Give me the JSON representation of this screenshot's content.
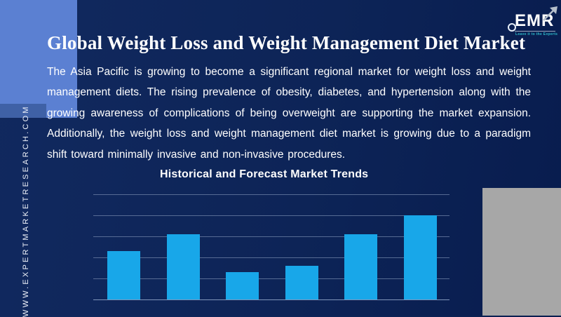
{
  "brand": {
    "logo_text": "EMR",
    "logo_tagline": "Leave it to the Experts",
    "website_vertical": "WWW.EXPERTMARKETRESEARCH.COM"
  },
  "header": {
    "title": "Global Weight Loss and Weight Management Diet Market",
    "paragraph": "The Asia Pacific is growing to become a significant regional market for weight loss and weight management diets. The rising prevalence of obesity, diabetes, and hypertension along with the growing awareness of complications of being overweight are supporting the market expansion. Additionally, the weight loss and weight management diet market is growing due to a paradigm shift toward minimally invasive and non-invasive procedures."
  },
  "chart_data": {
    "type": "bar",
    "title": "Historical and Forecast Market Trends",
    "categories": [
      "",
      "",
      "",
      "",
      "",
      ""
    ],
    "values": [
      2.3,
      3.1,
      1.3,
      1.6,
      3.1,
      4.0
    ],
    "ylim": [
      0,
      5
    ],
    "gridline_count": 6,
    "grid": true,
    "legend": "none",
    "xlabel": "",
    "ylabel": "",
    "bar_color": "#18a7e9"
  },
  "colors": {
    "background_navy": "#0d2457",
    "accent_block_blue": "#5b80d2",
    "accent_block_shade": "#3f61a6",
    "side_gray_block": "#a7a7a7",
    "bar_cyan": "#18a7e9",
    "gridline": "#64789f",
    "text_white": "#ffffff",
    "tagline_teal": "#2cb7c7"
  }
}
